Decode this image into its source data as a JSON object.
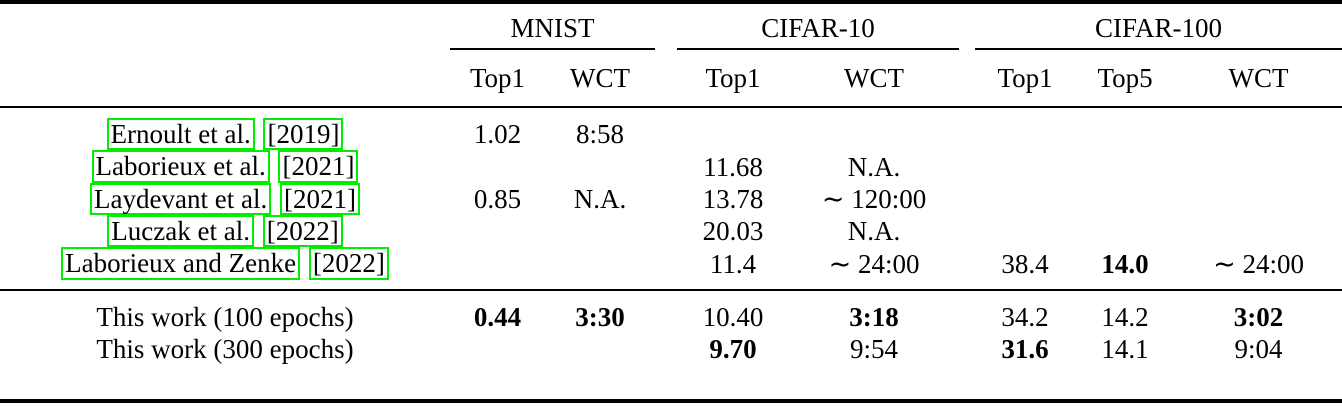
{
  "link_color": "#00ee00",
  "header": {
    "groups": [
      {
        "label": "MNIST",
        "cols": [
          "Top1",
          "WCT"
        ]
      },
      {
        "label": "CIFAR-10",
        "cols": [
          "Top1",
          "WCT"
        ]
      },
      {
        "label": "CIFAR-100",
        "cols": [
          "Top1",
          "Top5",
          "WCT"
        ]
      }
    ]
  },
  "prior_rows": [
    {
      "author": "Ernoult et al.",
      "year": "[2019]",
      "cells": [
        {
          "t": "1.02"
        },
        {
          "t": "8:58"
        },
        {
          "t": ""
        },
        {
          "t": ""
        },
        {
          "t": ""
        },
        {
          "t": ""
        },
        {
          "t": ""
        }
      ]
    },
    {
      "author": "Laborieux et al.",
      "year": "[2021]",
      "cells": [
        {
          "t": ""
        },
        {
          "t": ""
        },
        {
          "t": "11.68"
        },
        {
          "t": "N.A."
        },
        {
          "t": ""
        },
        {
          "t": ""
        },
        {
          "t": ""
        }
      ]
    },
    {
      "author": "Laydevant et al.",
      "year": "[2021]",
      "cells": [
        {
          "t": "0.85"
        },
        {
          "t": "N.A."
        },
        {
          "t": "13.78"
        },
        {
          "t": "∼ 120:00"
        },
        {
          "t": ""
        },
        {
          "t": ""
        },
        {
          "t": ""
        }
      ]
    },
    {
      "author": "Luczak et al.",
      "year": "[2022]",
      "cells": [
        {
          "t": ""
        },
        {
          "t": ""
        },
        {
          "t": "20.03"
        },
        {
          "t": "N.A."
        },
        {
          "t": ""
        },
        {
          "t": ""
        },
        {
          "t": ""
        }
      ]
    },
    {
      "author": "Laborieux and Zenke",
      "year": "[2022]",
      "cells": [
        {
          "t": ""
        },
        {
          "t": ""
        },
        {
          "t": "11.4"
        },
        {
          "t": "∼ 24:00"
        },
        {
          "t": "38.4"
        },
        {
          "t": "14.0",
          "b": true
        },
        {
          "t": "∼ 24:00"
        }
      ]
    }
  ],
  "work_rows": [
    {
      "label": "This work (100 epochs)",
      "cells": [
        {
          "t": "0.44",
          "b": true
        },
        {
          "t": "3:30",
          "b": true
        },
        {
          "t": "10.40"
        },
        {
          "t": "3:18",
          "b": true
        },
        {
          "t": "34.2"
        },
        {
          "t": "14.2"
        },
        {
          "t": "3:02",
          "b": true
        }
      ]
    },
    {
      "label": "This work (300 epochs)",
      "cells": [
        {
          "t": ""
        },
        {
          "t": ""
        },
        {
          "t": "9.70",
          "b": true
        },
        {
          "t": "9:54"
        },
        {
          "t": "31.6",
          "b": true
        },
        {
          "t": "14.1"
        },
        {
          "t": "9:04"
        }
      ]
    }
  ]
}
